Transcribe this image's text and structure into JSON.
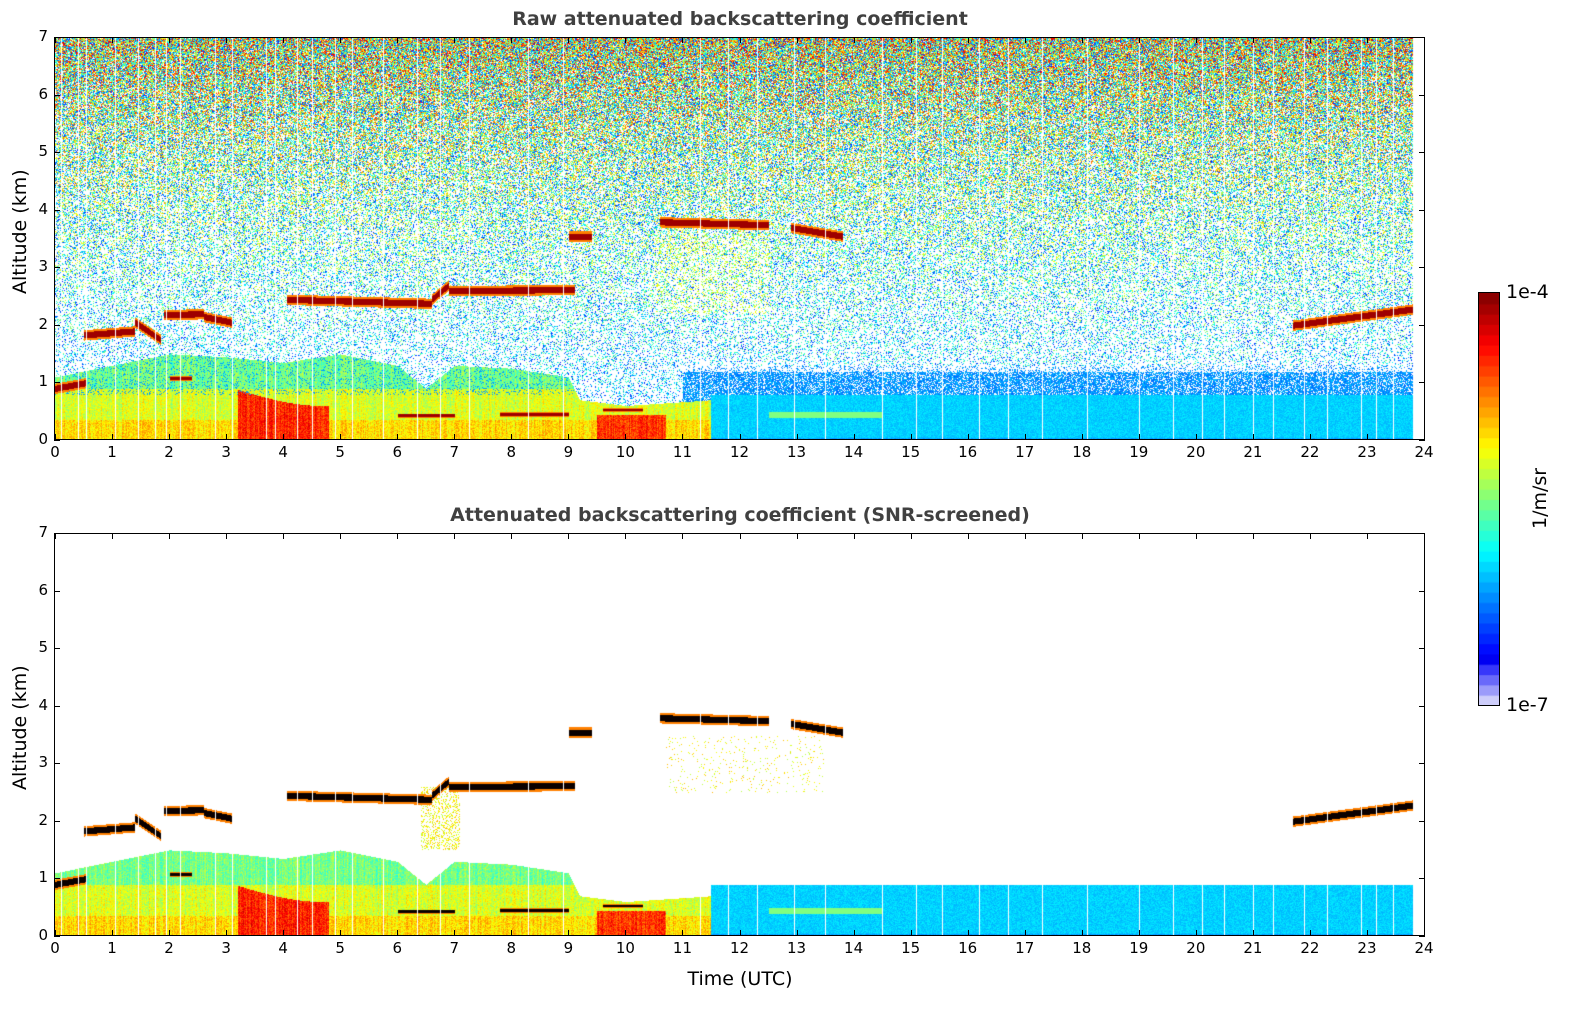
{
  "chart_data": [
    {
      "type": "heatmap",
      "title": "Raw attenuated backscattering coefficient",
      "xlabel": "",
      "ylabel": "Altitude (km)",
      "xlim": [
        0,
        24
      ],
      "ylim": [
        0,
        7
      ],
      "xticks": [
        "0",
        "1",
        "2",
        "3",
        "4",
        "5",
        "6",
        "7",
        "8",
        "9",
        "10",
        "11",
        "12",
        "13",
        "14",
        "15",
        "16",
        "17",
        "18",
        "19",
        "20",
        "21",
        "22",
        "23",
        "24"
      ],
      "yticks": [
        "0",
        "1",
        "2",
        "3",
        "4",
        "5",
        "6",
        "7"
      ],
      "screened": false
    },
    {
      "type": "heatmap",
      "title": "Attenuated backscattering coefficient (SNR-screened)",
      "xlabel": "Time (UTC)",
      "ylabel": "Altitude (km)",
      "xlim": [
        0,
        24
      ],
      "ylim": [
        0,
        7
      ],
      "xticks": [
        "0",
        "1",
        "2",
        "3",
        "4",
        "5",
        "6",
        "7",
        "8",
        "9",
        "10",
        "11",
        "12",
        "13",
        "14",
        "15",
        "16",
        "17",
        "18",
        "19",
        "20",
        "21",
        "22",
        "23",
        "24"
      ],
      "yticks": [
        "0",
        "1",
        "2",
        "3",
        "4",
        "5",
        "6",
        "7"
      ],
      "screened": true
    }
  ],
  "features": {
    "data_end_hour": 23.8,
    "cloud_layers_km": [
      {
        "t0": 0.0,
        "t1": 0.55,
        "z0": 0.9,
        "z1": 1.0
      },
      {
        "t0": 0.5,
        "t1": 1.4,
        "z0": 1.83,
        "z1": 1.9
      },
      {
        "t0": 1.4,
        "t1": 1.85,
        "z0": 2.05,
        "z1": 1.75
      },
      {
        "t0": 1.9,
        "t1": 2.6,
        "z0": 2.18,
        "z1": 2.2
      },
      {
        "t0": 2.6,
        "t1": 3.1,
        "z0": 2.15,
        "z1": 2.05
      },
      {
        "t0": 4.05,
        "t1": 6.6,
        "z0": 2.45,
        "z1": 2.38
      },
      {
        "t0": 6.6,
        "t1": 6.9,
        "z0": 2.45,
        "z1": 2.7
      },
      {
        "t0": 6.9,
        "t1": 9.1,
        "z0": 2.6,
        "z1": 2.62
      },
      {
        "t0": 9.0,
        "t1": 9.4,
        "z0": 3.55,
        "z1": 3.55
      },
      {
        "t0": 10.6,
        "t1": 12.5,
        "z0": 3.8,
        "z1": 3.75
      },
      {
        "t0": 12.9,
        "t1": 13.8,
        "z0": 3.7,
        "z1": 3.55
      },
      {
        "t0": 2.0,
        "t1": 2.4,
        "z0": 1.08,
        "z1": 1.08
      },
      {
        "t0": 6.0,
        "t1": 7.0,
        "z0": 0.43,
        "z1": 0.43
      },
      {
        "t0": 7.8,
        "t1": 9.0,
        "z0": 0.45,
        "z1": 0.45
      },
      {
        "t0": 9.6,
        "t1": 10.3,
        "z0": 0.53,
        "z1": 0.53
      },
      {
        "t0": 21.7,
        "t1": 23.8,
        "z0": 2.0,
        "z1": 2.28
      }
    ],
    "boundary_layer_top_km": [
      [
        0,
        1.1
      ],
      [
        1,
        1.3
      ],
      [
        2,
        1.5
      ],
      [
        3,
        1.45
      ],
      [
        4,
        1.35
      ],
      [
        5,
        1.5
      ],
      [
        6,
        1.3
      ],
      [
        6.5,
        0.9
      ],
      [
        7,
        1.3
      ],
      [
        8,
        1.25
      ],
      [
        9,
        1.1
      ],
      [
        9.2,
        0.7
      ],
      [
        10,
        0.6
      ],
      [
        11.5,
        0.7
      ],
      [
        12,
        0.85
      ],
      [
        24,
        0.85
      ]
    ],
    "gap_hours": [
      0.1,
      0.4,
      0.55,
      1.05,
      1.45,
      1.75,
      1.95,
      2.2,
      2.8,
      3.1,
      3.7,
      3.85,
      4.25,
      4.5,
      4.9,
      5.2,
      5.75,
      6.35,
      6.75,
      7.25,
      8.3,
      8.9,
      11.3,
      11.8,
      12.3,
      12.95,
      13.5,
      14.5,
      15.1,
      15.55,
      16.2,
      16.7,
      17.3,
      18.1,
      19.0,
      19.6,
      20.1,
      20.5,
      21.0,
      21.35,
      21.9,
      22.3,
      22.9,
      23.15,
      23.45
    ]
  },
  "colorbar": {
    "label": "1/m/sr",
    "max_label": "1e-4",
    "min_label": "1e-7",
    "scale": "log"
  }
}
